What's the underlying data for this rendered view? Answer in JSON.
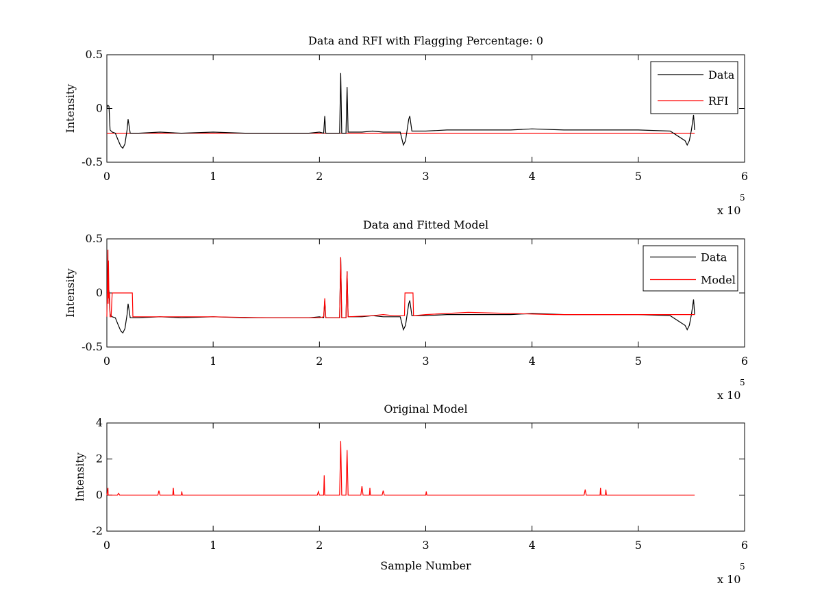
{
  "chart_data": [
    {
      "type": "line",
      "title": "Data and RFI with Flagging Percentage: 0",
      "xlabel": "",
      "ylabel": "Intensity",
      "xlim": [
        0,
        6
      ],
      "ylim": [
        -0.5,
        0.5
      ],
      "x_exponent": {
        "prefix": "x 10",
        "power": "5"
      },
      "xticks": [
        "0",
        "1",
        "2",
        "3",
        "4",
        "5",
        "6"
      ],
      "yticks": [
        "-0.5",
        "0",
        "0.5"
      ],
      "ytick_values": [
        -0.5,
        0,
        0.5
      ],
      "legend": {
        "placement": "top-right"
      },
      "series": [
        {
          "name": "Data",
          "color": "#000000",
          "x": [
            0,
            0.005,
            0.01,
            0.02,
            0.03,
            0.05,
            0.08,
            0.1,
            0.13,
            0.15,
            0.17,
            0.19,
            0.2,
            0.22,
            0.3,
            0.5,
            0.7,
            1.0,
            1.3,
            1.6,
            1.9,
            2.0,
            2.04,
            2.05,
            2.06,
            2.19,
            2.2,
            2.21,
            2.25,
            2.26,
            2.27,
            2.4,
            2.5,
            2.6,
            2.76,
            2.79,
            2.81,
            2.84,
            2.85,
            2.87,
            3.0,
            3.2,
            3.5,
            3.8,
            4.0,
            4.3,
            4.6,
            5.0,
            5.3,
            5.44,
            5.46,
            5.48,
            5.5,
            5.52,
            5.53
          ],
          "y": [
            0.0,
            0.02,
            0.03,
            0.02,
            -0.2,
            -0.22,
            -0.23,
            -0.28,
            -0.35,
            -0.37,
            -0.33,
            -0.2,
            -0.1,
            -0.23,
            -0.23,
            -0.22,
            -0.23,
            -0.22,
            -0.23,
            -0.23,
            -0.23,
            -0.22,
            -0.23,
            -0.07,
            -0.23,
            -0.23,
            0.33,
            -0.23,
            -0.23,
            0.2,
            -0.22,
            -0.22,
            -0.21,
            -0.22,
            -0.22,
            -0.34,
            -0.3,
            -0.1,
            -0.07,
            -0.21,
            -0.21,
            -0.2,
            -0.2,
            -0.2,
            -0.19,
            -0.2,
            -0.2,
            -0.2,
            -0.21,
            -0.3,
            -0.34,
            -0.3,
            -0.2,
            -0.06,
            -0.2
          ]
        },
        {
          "name": "RFI",
          "color": "#ff0000",
          "x": [
            0,
            5.53
          ],
          "y": [
            -0.23,
            -0.23
          ]
        }
      ]
    },
    {
      "type": "line",
      "title": "Data and Fitted Model",
      "xlabel": "",
      "ylabel": "Intensity",
      "xlim": [
        0,
        6
      ],
      "ylim": [
        -0.5,
        0.5
      ],
      "x_exponent": {
        "prefix": "x 10",
        "power": "5"
      },
      "xticks": [
        "0",
        "1",
        "2",
        "3",
        "4",
        "5",
        "6"
      ],
      "yticks": [
        "-0.5",
        "0",
        "0.5"
      ],
      "ytick_values": [
        -0.5,
        0,
        0.5
      ],
      "legend": {
        "placement": "top-right"
      },
      "series": [
        {
          "name": "Data",
          "color": "#000000",
          "x": [
            0,
            0.005,
            0.01,
            0.02,
            0.03,
            0.05,
            0.08,
            0.1,
            0.13,
            0.15,
            0.17,
            0.19,
            0.2,
            0.22,
            0.3,
            0.5,
            0.7,
            1.0,
            1.3,
            1.6,
            1.9,
            2.0,
            2.04,
            2.05,
            2.06,
            2.19,
            2.2,
            2.21,
            2.25,
            2.26,
            2.27,
            2.4,
            2.5,
            2.6,
            2.76,
            2.79,
            2.81,
            2.84,
            2.85,
            2.87,
            3.0,
            3.2,
            3.5,
            3.8,
            4.0,
            4.3,
            4.6,
            5.0,
            5.3,
            5.44,
            5.46,
            5.48,
            5.5,
            5.52,
            5.53
          ],
          "y": [
            0.0,
            0.02,
            0.03,
            0.02,
            -0.2,
            -0.22,
            -0.23,
            -0.28,
            -0.35,
            -0.37,
            -0.33,
            -0.2,
            -0.1,
            -0.23,
            -0.23,
            -0.22,
            -0.23,
            -0.22,
            -0.23,
            -0.23,
            -0.23,
            -0.22,
            -0.23,
            -0.07,
            -0.23,
            -0.23,
            0.33,
            -0.23,
            -0.23,
            0.2,
            -0.22,
            -0.22,
            -0.21,
            -0.22,
            -0.22,
            -0.34,
            -0.3,
            -0.1,
            -0.07,
            -0.21,
            -0.21,
            -0.2,
            -0.2,
            -0.2,
            -0.19,
            -0.2,
            -0.2,
            -0.2,
            -0.21,
            -0.3,
            -0.34,
            -0.3,
            -0.2,
            -0.06,
            -0.2
          ]
        },
        {
          "name": "Model",
          "color": "#ff0000",
          "x": [
            0,
            0.01,
            0.012,
            0.015,
            0.02,
            0.025,
            0.03,
            0.04,
            0.05,
            0.06,
            0.07,
            0.24,
            0.245,
            0.5,
            1.0,
            1.5,
            2.0,
            2.04,
            2.05,
            2.06,
            2.19,
            2.2,
            2.21,
            2.25,
            2.26,
            2.27,
            2.5,
            2.6,
            2.7,
            2.8,
            2.805,
            2.88,
            2.885,
            3.0,
            3.4,
            3.8,
            4.2,
            4.6,
            5.0,
            5.5,
            5.53
          ],
          "y": [
            -0.22,
            0.4,
            -0.1,
            0.3,
            -0.05,
            0.0,
            -0.22,
            -0.22,
            0.0,
            0.0,
            0.0,
            0.0,
            -0.22,
            -0.22,
            -0.22,
            -0.23,
            -0.23,
            -0.22,
            -0.05,
            -0.23,
            -0.23,
            0.33,
            -0.23,
            -0.23,
            0.2,
            -0.22,
            -0.21,
            -0.2,
            -0.21,
            -0.21,
            0.0,
            0.0,
            -0.21,
            -0.2,
            -0.18,
            -0.19,
            -0.2,
            -0.2,
            -0.2,
            -0.2,
            -0.2
          ]
        }
      ]
    },
    {
      "type": "line",
      "title": "Original Model",
      "xlabel": "Sample Number",
      "ylabel": "Intensity",
      "xlim": [
        0,
        6
      ],
      "ylim": [
        -2,
        4
      ],
      "x_exponent": {
        "prefix": "x 10",
        "power": "5"
      },
      "xticks": [
        "0",
        "1",
        "2",
        "3",
        "4",
        "5",
        "6"
      ],
      "yticks": [
        "-2",
        "0",
        "2",
        "4"
      ],
      "ytick_values": [
        -2,
        0,
        2,
        4
      ],
      "series": [
        {
          "name": "",
          "color": "#ff0000",
          "x": [
            0,
            0.01,
            0.012,
            0.015,
            0.1,
            0.11,
            0.12,
            0.48,
            0.49,
            0.5,
            0.62,
            0.625,
            0.63,
            0.7,
            0.705,
            0.71,
            1.98,
            1.99,
            2.0,
            2.04,
            2.045,
            2.05,
            2.19,
            2.2,
            2.21,
            2.25,
            2.26,
            2.27,
            2.39,
            2.4,
            2.41,
            2.47,
            2.475,
            2.48,
            2.59,
            2.6,
            2.61,
            3.0,
            3.005,
            3.01,
            4.49,
            4.5,
            4.51,
            4.64,
            4.645,
            4.65,
            4.69,
            4.695,
            4.7,
            5.53
          ],
          "y": [
            0,
            0.4,
            0,
            0,
            0,
            0.1,
            0,
            0,
            0.25,
            0,
            0,
            0.4,
            0,
            0,
            0.2,
            0,
            0,
            0.2,
            0,
            0,
            1.1,
            0,
            0,
            3.0,
            0,
            0,
            2.5,
            0,
            0,
            0.5,
            0,
            0,
            0.4,
            0,
            0,
            0.25,
            0,
            0,
            0.2,
            0,
            0,
            0.3,
            0,
            0,
            0.4,
            0,
            0,
            0.3,
            0,
            0
          ]
        }
      ]
    }
  ]
}
